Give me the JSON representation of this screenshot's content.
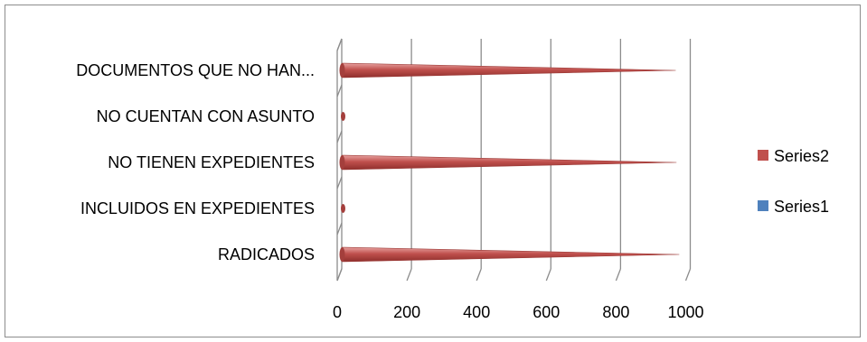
{
  "chart_data": {
    "type": "bar",
    "orientation": "horizontal",
    "style": "3d-cone",
    "categories": [
      "DOCUMENTOS QUE NO HAN...",
      "NO CUENTAN CON ASUNTO",
      "NO TIENEN EXPEDIENTES",
      "INCLUIDOS EN EXPEDIENTES",
      "RADICADOS"
    ],
    "series": [
      {
        "name": "Series2",
        "color": "#c0504d",
        "values": [
          965,
          8,
          967,
          8,
          975
        ]
      },
      {
        "name": "Series1",
        "color": "#4f81bd",
        "values": [
          0,
          0,
          0,
          0,
          0
        ]
      }
    ],
    "xlim": [
      0,
      1000
    ],
    "xticks": [
      "0",
      "200",
      "400",
      "600",
      "800",
      "1000"
    ],
    "grid": true,
    "legend": {
      "position": "right",
      "entries": [
        "Series2",
        "Series1"
      ]
    },
    "title": "",
    "xlabel": "",
    "ylabel": ""
  }
}
